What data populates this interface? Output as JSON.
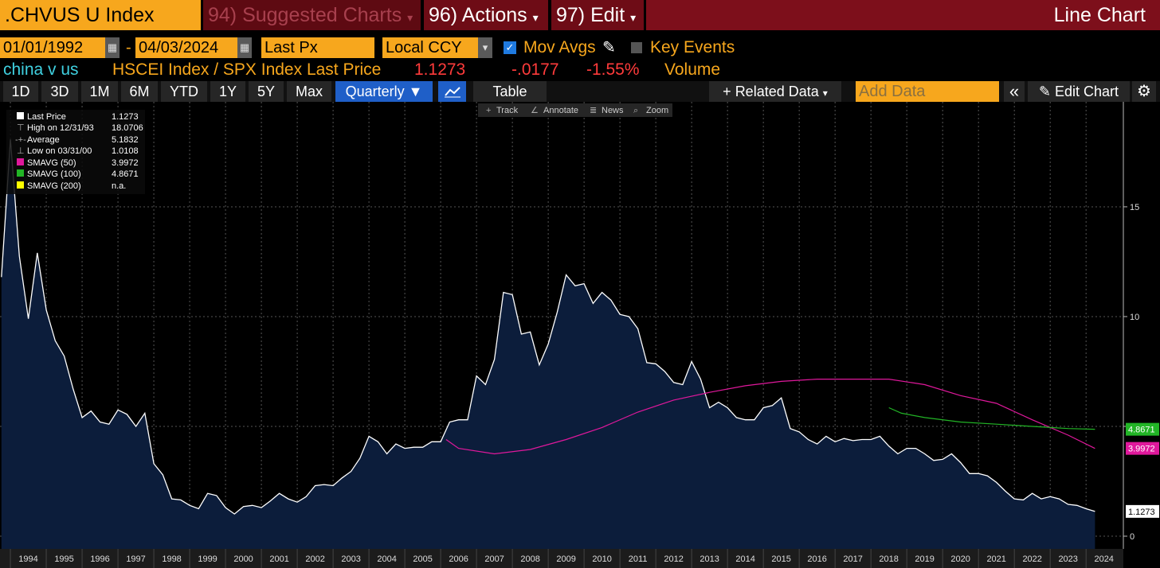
{
  "header": {
    "ticker": ".CHVUS U Index",
    "menus": [
      "94) Suggested Charts",
      "96) Actions",
      "97) Edit"
    ],
    "view": "Line Chart"
  },
  "controls": {
    "start_date": "01/01/1992",
    "date_separator": "-",
    "end_date": "04/03/2024",
    "field": "Last Px",
    "currency": "Local CCY",
    "mov_avgs": "Mov Avgs",
    "key_events": "Key Events"
  },
  "quote": {
    "name": "china v us",
    "description": "HSCEI Index / SPX Index Last Price",
    "price": "1.1273",
    "change": "-.0177",
    "change_pct": "-1.55%",
    "volume": "Volume"
  },
  "toolbar": {
    "ranges": [
      "1D",
      "3D",
      "1M",
      "6M",
      "YTD",
      "1Y",
      "5Y",
      "Max"
    ],
    "period": "Quarterly",
    "table": "Table",
    "related": "Related Data",
    "add_data": "Add Data",
    "edit_chart": "Edit Chart"
  },
  "chart_tools": [
    "Track",
    "Annotate",
    "News",
    "Zoom"
  ],
  "chart_data": {
    "type": "line",
    "area_fill": "#0c1d3b",
    "grid": true,
    "xlim": [
      1993.71,
      2025.04
    ],
    "ylim": [
      -0.58,
      19.78
    ],
    "yticks": [
      0,
      5,
      10,
      15
    ],
    "year_labels": [
      1994,
      1995,
      1996,
      1997,
      1998,
      1999,
      2000,
      2001,
      2002,
      2003,
      2004,
      2005,
      2006,
      2007,
      2008,
      2009,
      2010,
      2011,
      2012,
      2013,
      2014,
      2015,
      2016,
      2017,
      2018,
      2019,
      2020,
      2021,
      2022,
      2023,
      2024
    ],
    "series": [
      {
        "name": "Last Price",
        "color": "#ffffff",
        "x": [
          1993.75,
          1994,
          1994.25,
          1994.5,
          1994.75,
          1995,
          1995.25,
          1995.5,
          1995.75,
          1996,
          1996.25,
          1996.5,
          1996.75,
          1997,
          1997.25,
          1997.5,
          1997.75,
          1998,
          1998.25,
          1998.5,
          1998.75,
          1999,
          1999.25,
          1999.5,
          1999.75,
          2000,
          2000.25,
          2000.5,
          2000.75,
          2001,
          2001.25,
          2001.5,
          2001.75,
          2002,
          2002.25,
          2002.5,
          2002.75,
          2003,
          2003.25,
          2003.5,
          2003.75,
          2004,
          2004.25,
          2004.5,
          2004.75,
          2005,
          2005.25,
          2005.5,
          2005.75,
          2006,
          2006.25,
          2006.5,
          2006.75,
          2007,
          2007.25,
          2007.5,
          2007.75,
          2008,
          2008.25,
          2008.5,
          2008.75,
          2009,
          2009.25,
          2009.5,
          2009.75,
          2010,
          2010.25,
          2010.5,
          2010.75,
          2011,
          2011.25,
          2011.5,
          2011.75,
          2012,
          2012.25,
          2012.5,
          2012.75,
          2013,
          2013.25,
          2013.5,
          2013.75,
          2014,
          2014.25,
          2014.5,
          2014.75,
          2015,
          2015.25,
          2015.5,
          2015.75,
          2016,
          2016.25,
          2016.5,
          2016.75,
          2017,
          2017.25,
          2017.5,
          2017.75,
          2018,
          2018.25,
          2018.5,
          2018.75,
          2019,
          2019.25,
          2019.5,
          2019.75,
          2020,
          2020.25,
          2020.5,
          2020.75,
          2021,
          2021.25,
          2021.5,
          2021.75,
          2022,
          2022.25,
          2022.5,
          2022.75,
          2023,
          2023.25,
          2023.5,
          2023.75,
          2024,
          2024.25
        ],
        "values": [
          11.8,
          18.0706,
          12.75,
          9.9,
          12.9,
          10.3,
          8.9,
          8.2,
          6.7,
          5.4,
          5.7,
          5.2,
          5.1,
          5.75,
          5.55,
          5.0,
          5.6,
          3.3,
          2.8,
          1.7,
          1.65,
          1.4,
          1.25,
          1.95,
          1.85,
          1.3,
          1.0108,
          1.35,
          1.4,
          1.3,
          1.6,
          1.95,
          1.7,
          1.55,
          1.8,
          2.3,
          2.35,
          2.3,
          2.65,
          2.95,
          3.55,
          4.55,
          4.3,
          3.75,
          4.2,
          4.0,
          4.05,
          4.05,
          4.3,
          4.3,
          5.2,
          5.3,
          5.3,
          7.3,
          6.9,
          8.05,
          11.1,
          11.0,
          9.2,
          9.3,
          7.8,
          8.75,
          10.2,
          11.9,
          11.4,
          11.5,
          10.6,
          11.1,
          10.75,
          10.1,
          10.0,
          9.45,
          7.9,
          7.85,
          7.5,
          7.0,
          6.9,
          7.95,
          7.15,
          5.85,
          6.1,
          5.85,
          5.4,
          5.3,
          5.3,
          5.85,
          5.95,
          6.3,
          4.9,
          4.75,
          4.4,
          4.2,
          4.55,
          4.3,
          4.45,
          4.35,
          4.4,
          4.4,
          4.55,
          4.1,
          3.75,
          4.0,
          4.0,
          3.75,
          3.45,
          3.5,
          3.75,
          3.35,
          2.85,
          2.85,
          2.75,
          2.45,
          2.05,
          1.7,
          1.65,
          1.95,
          1.7,
          1.8,
          1.7,
          1.45,
          1.4,
          1.25,
          1.1273
        ]
      },
      {
        "name": "SMAVG (50)",
        "color": "#e0189c",
        "x": [
          2006.15,
          2006.5,
          2007.5,
          2008.5,
          2009.5,
          2010.5,
          2011.5,
          2012.5,
          2013.5,
          2014.5,
          2015.5,
          2016.5,
          2017.5,
          2018.5,
          2019.5,
          2020.5,
          2021.5,
          2022.5,
          2023.5,
          2024.25
        ],
        "values": [
          4.4,
          4.0,
          3.75,
          3.95,
          4.4,
          4.95,
          5.65,
          6.2,
          6.55,
          6.85,
          7.05,
          7.15,
          7.15,
          7.15,
          6.9,
          6.4,
          6.05,
          5.3,
          4.6,
          3.9972
        ]
      },
      {
        "name": "SMAVG (100)",
        "color": "#22b526",
        "x": [
          2018.5,
          2018.85,
          2019.5,
          2020.5,
          2021.5,
          2022.5,
          2023.5,
          2024.25
        ],
        "values": [
          5.85,
          5.6,
          5.4,
          5.2,
          5.1,
          5.0,
          4.9,
          4.8671
        ]
      }
    ],
    "legend_stats": {
      "high_label": "High on 12/31/93",
      "average_label": "Average",
      "average": 5.1832,
      "low_label": "Low on 03/31/00",
      "sma200_name": "SMAVG (200)",
      "sma200_value": "n.a.",
      "sma200_color": "#ffff00"
    }
  }
}
